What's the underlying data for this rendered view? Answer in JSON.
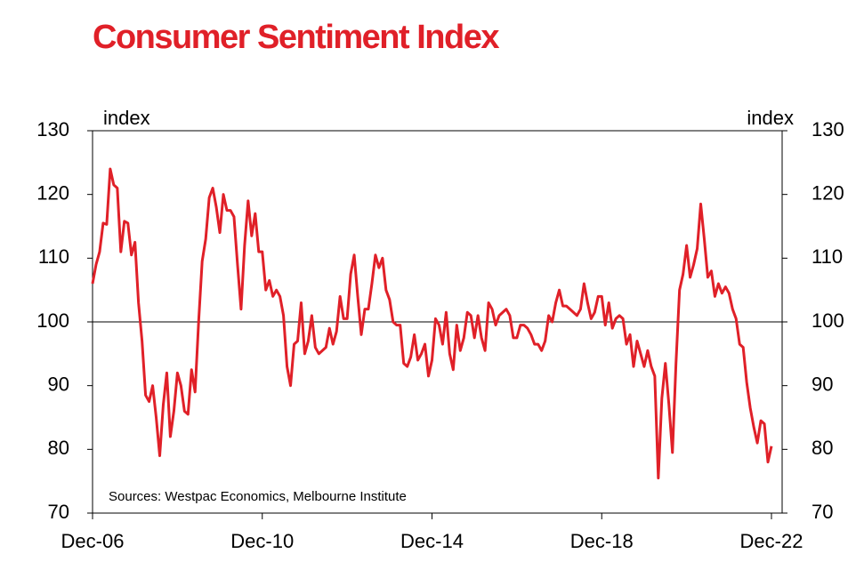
{
  "chart_data": {
    "type": "line",
    "title": "Consumer Sentiment Index",
    "y_label": "index",
    "y2_label": "index",
    "annotation": "Sources: Westpac Economics, Melbourne Institute",
    "color": "#e02028",
    "reference_line": 100,
    "categories": [
      "Dec-06",
      null,
      null,
      null,
      null,
      null,
      null,
      null,
      null,
      null,
      null,
      null,
      null,
      null,
      null,
      null,
      null,
      null,
      null,
      null,
      null,
      null,
      null,
      null,
      null,
      null,
      null,
      null,
      null,
      null,
      null,
      null,
      null,
      null,
      null,
      null,
      null,
      null,
      null,
      null,
      null,
      null,
      null,
      null,
      null,
      null,
      null,
      null,
      "Dec-10",
      null,
      null,
      null,
      null,
      null,
      null,
      null,
      null,
      null,
      null,
      null,
      null,
      null,
      null,
      null,
      null,
      null,
      null,
      null,
      null,
      null,
      null,
      null,
      null,
      null,
      null,
      null,
      null,
      null,
      null,
      null,
      null,
      null,
      null,
      null,
      null,
      null,
      null,
      null,
      null,
      null,
      null,
      null,
      null,
      null,
      null,
      null,
      "Dec-14",
      null,
      null,
      null,
      null,
      null,
      null,
      null,
      null,
      null,
      null,
      null,
      null,
      null,
      null,
      null,
      null,
      null,
      null,
      null,
      null,
      null,
      null,
      null,
      null,
      null,
      null,
      null,
      null,
      null,
      null,
      null,
      null,
      null,
      null,
      null,
      null,
      null,
      null,
      null,
      null,
      null,
      null,
      null,
      null,
      null,
      null,
      null,
      "Dec-18",
      null,
      null,
      null,
      null,
      null,
      null,
      null,
      null,
      null,
      null,
      null,
      null,
      null,
      null,
      null,
      null,
      null,
      null,
      null,
      null,
      null,
      null,
      null,
      null,
      null,
      null,
      null,
      null,
      null,
      null,
      null,
      null,
      null,
      null,
      null,
      null,
      null,
      null,
      null,
      null,
      null,
      null,
      null,
      null,
      null,
      null,
      null,
      "Dec-22"
    ],
    "values": [
      106,
      109,
      111,
      115.5,
      115.3,
      124,
      121.5,
      121,
      111,
      115.8,
      115.5,
      110.5,
      112.5,
      103,
      97,
      88.5,
      87.5,
      90,
      85,
      79,
      87,
      92,
      82,
      86,
      92,
      90,
      86,
      85.5,
      92.5,
      89,
      100,
      109.5,
      113,
      119.5,
      121,
      118,
      114,
      120,
      117.5,
      117.5,
      116.5,
      109,
      102,
      112,
      119,
      113.5,
      117,
      111,
      111,
      105,
      106.5,
      104,
      105,
      104,
      101,
      93,
      90,
      96.5,
      97,
      103,
      95,
      97,
      101,
      96,
      95,
      95.5,
      96,
      99,
      96.5,
      98.5,
      104,
      100.5,
      100.5,
      107.5,
      110.5,
      104,
      98,
      102,
      102,
      106,
      110.5,
      108.5,
      110,
      105,
      103.5,
      100,
      99.5,
      99.5,
      93.5,
      93,
      94.5,
      98,
      94,
      95,
      96.5,
      91.5,
      94,
      100.5,
      99.5,
      96.5,
      101.5,
      95,
      92.5,
      99.5,
      95.5,
      97.5,
      101.5,
      101,
      97.5,
      101,
      97.5,
      95.5,
      103,
      102,
      99.5,
      101,
      101.5,
      102,
      101,
      97.5,
      97.5,
      99.5,
      99.5,
      99,
      98,
      96.5,
      96.5,
      95.5,
      97,
      101,
      100,
      103,
      105,
      102.5,
      102.5,
      102,
      101.5,
      101,
      102,
      106,
      103,
      100.5,
      101.5,
      104,
      104,
      99.5,
      103,
      99,
      100.5,
      101,
      100.5,
      96.5,
      98,
      93,
      97,
      95,
      93,
      95.5,
      93,
      91.5,
      75.5,
      88,
      93.5,
      87,
      79.5,
      93.5,
      105,
      107.5,
      112,
      107,
      109,
      111.5,
      118.5,
      113,
      107,
      108,
      104,
      106,
      104.5,
      105.5,
      104.5,
      102,
      100.5,
      96.5,
      96,
      90.5,
      86.5,
      83.5,
      81,
      84.5,
      84,
      78,
      80.5
    ],
    "ylim": [
      70,
      130
    ],
    "yticks": [
      70,
      80,
      90,
      100,
      110,
      120,
      130
    ],
    "y2lim": [
      70,
      130
    ],
    "y2ticks": [
      70,
      80,
      90,
      100,
      110,
      120,
      130
    ]
  }
}
